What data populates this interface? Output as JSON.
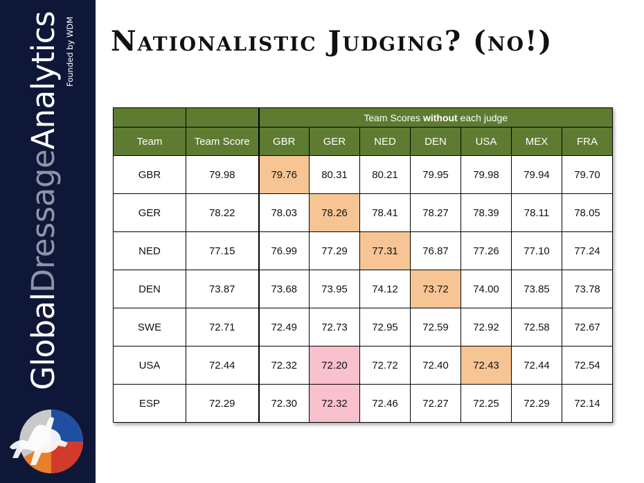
{
  "sidebar": {
    "brand_global": "Global",
    "brand_dressage": "Dressage",
    "brand_analytics": "Analytics",
    "founded_by": "Founded by WDM"
  },
  "title": "Nationalistic Judging? (no!)",
  "table": {
    "header_group_prefix": "Team Scores ",
    "header_group_bold": "without",
    "header_group_suffix": " each  judge",
    "col_team": "Team",
    "col_team_score": "Team Score",
    "judges": [
      "GBR",
      "GER",
      "NED",
      "DEN",
      "USA",
      "MEX",
      "FRA"
    ],
    "rows": [
      {
        "team": "GBR",
        "team_score": "79.98",
        "scores": [
          "79.76",
          "80.31",
          "80.21",
          "79.95",
          "79.98",
          "79.94",
          "79.70"
        ],
        "highlight": {
          "0": "orange"
        }
      },
      {
        "team": "GER",
        "team_score": "78.22",
        "scores": [
          "78.03",
          "78.26",
          "78.41",
          "78.27",
          "78.39",
          "78.11",
          "78.05"
        ],
        "highlight": {
          "1": "orange"
        }
      },
      {
        "team": "NED",
        "team_score": "77.15",
        "scores": [
          "76.99",
          "77.29",
          "77.31",
          "76.87",
          "77.26",
          "77.10",
          "77.24"
        ],
        "highlight": {
          "2": "orange"
        }
      },
      {
        "team": "DEN",
        "team_score": "73.87",
        "scores": [
          "73.68",
          "73.95",
          "74.12",
          "73.72",
          "74.00",
          "73.85",
          "73.78"
        ],
        "highlight": {
          "3": "orange"
        }
      },
      {
        "team": "SWE",
        "team_score": "72.71",
        "scores": [
          "72.49",
          "72.73",
          "72.95",
          "72.59",
          "72.92",
          "72.58",
          "72.67"
        ],
        "highlight": {}
      },
      {
        "team": "USA",
        "team_score": "72.44",
        "scores": [
          "72.32",
          "72.20",
          "72.72",
          "72.40",
          "72.43",
          "72.44",
          "72.54"
        ],
        "highlight": {
          "1": "pink",
          "4": "orange"
        }
      },
      {
        "team": "ESP",
        "team_score": "72.29",
        "scores": [
          "72.30",
          "72.32",
          "72.46",
          "72.27",
          "72.25",
          "72.29",
          "72.14"
        ],
        "highlight": {
          "1": "pink"
        }
      }
    ]
  },
  "colors": {
    "sidebar_bg": "#0f1739",
    "header_green": "#5e7b32",
    "highlight_orange": "#f7c593",
    "highlight_pink": "#f9c0cd"
  }
}
